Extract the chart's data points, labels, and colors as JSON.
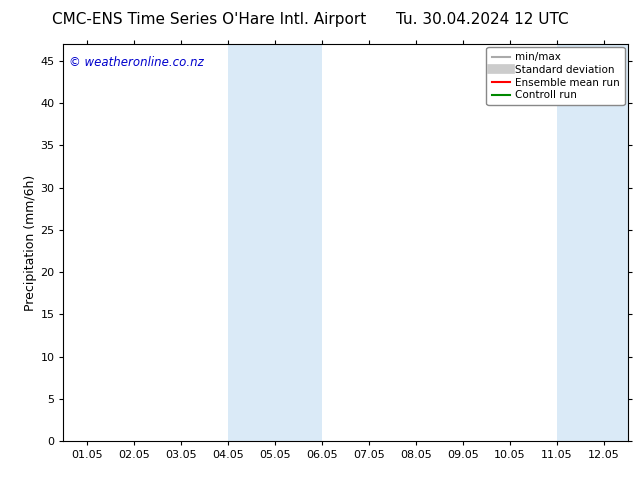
{
  "title_left": "CMC-ENS Time Series O'Hare Intl. Airport",
  "title_right": "Tu. 30.04.2024 12 UTC",
  "ylabel": "Precipitation (mm/6h)",
  "watermark": "© weatheronline.co.nz",
  "watermark_color": "#0000cc",
  "background_color": "#ffffff",
  "plot_bg_color": "#ffffff",
  "ylim": [
    0,
    47
  ],
  "yticks": [
    0,
    5,
    10,
    15,
    20,
    25,
    30,
    35,
    40,
    45
  ],
  "xtick_labels": [
    "01.05",
    "02.05",
    "03.05",
    "04.05",
    "05.05",
    "06.05",
    "07.05",
    "08.05",
    "09.05",
    "10.05",
    "11.05",
    "12.05"
  ],
  "shaded_regions": [
    {
      "xmin": 3.0,
      "xmax": 5.0
    },
    {
      "xmin": 10.0,
      "xmax": 12.0
    }
  ],
  "shade_color": "#daeaf7",
  "legend_items": [
    {
      "label": "min/max",
      "color": "#aaaaaa",
      "lw": 1.5
    },
    {
      "label": "Standard deviation",
      "color": "#cccccc",
      "lw": 7
    },
    {
      "label": "Ensemble mean run",
      "color": "#ff0000",
      "lw": 1.5
    },
    {
      "label": "Controll run",
      "color": "#008800",
      "lw": 1.5
    }
  ],
  "title_fontsize": 11,
  "axis_fontsize": 9,
  "tick_fontsize": 8,
  "watermark_fontsize": 8.5,
  "legend_fontsize": 7.5
}
